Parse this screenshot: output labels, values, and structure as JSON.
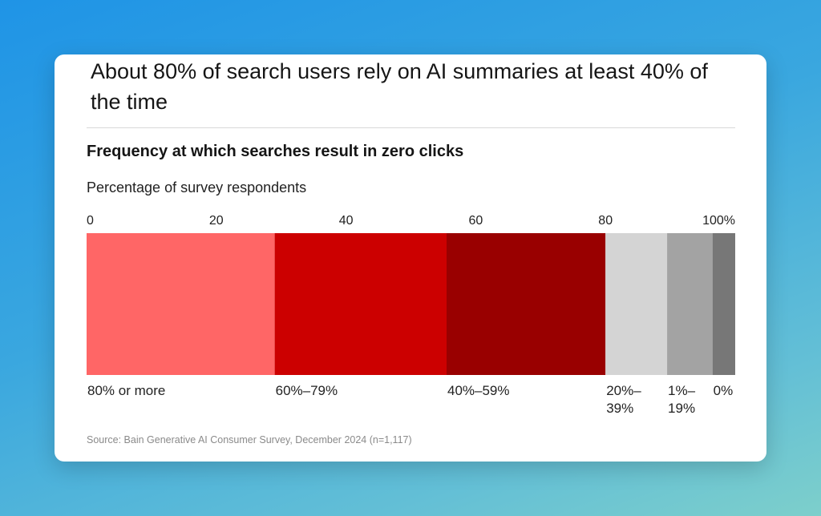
{
  "headline": "About 80% of search users rely on AI summaries at least 40% of the time",
  "source": "Source: Bain Generative AI Consumer Survey, December 2024 (n=1,117)",
  "chart_data": {
    "type": "bar",
    "orientation": "horizontal-stacked",
    "title": "Frequency at which searches result in zero clicks",
    "subtitle": "Percentage of survey respondents",
    "xlim": [
      0,
      100
    ],
    "ticks": [
      {
        "value": 0,
        "label": "0"
      },
      {
        "value": 20,
        "label": "20"
      },
      {
        "value": 40,
        "label": "40"
      },
      {
        "value": 60,
        "label": "60"
      },
      {
        "value": 80,
        "label": "80"
      },
      {
        "value": 100,
        "label": "100%"
      }
    ],
    "segments": [
      {
        "label": [
          "80% or more"
        ],
        "value": 29,
        "color": "#ff6666"
      },
      {
        "label": [
          "60%–79%"
        ],
        "value": 26.5,
        "color": "#cc0000"
      },
      {
        "label": [
          "40%–59%"
        ],
        "value": 24.5,
        "color": "#990000"
      },
      {
        "label": [
          "20%–",
          "39%"
        ],
        "value": 9.5,
        "color": "#d4d4d4"
      },
      {
        "label": [
          "1%–",
          "19%"
        ],
        "value": 7,
        "color": "#a3a3a3"
      },
      {
        "label": [
          "0%"
        ],
        "value": 3.5,
        "color": "#777777"
      }
    ]
  }
}
